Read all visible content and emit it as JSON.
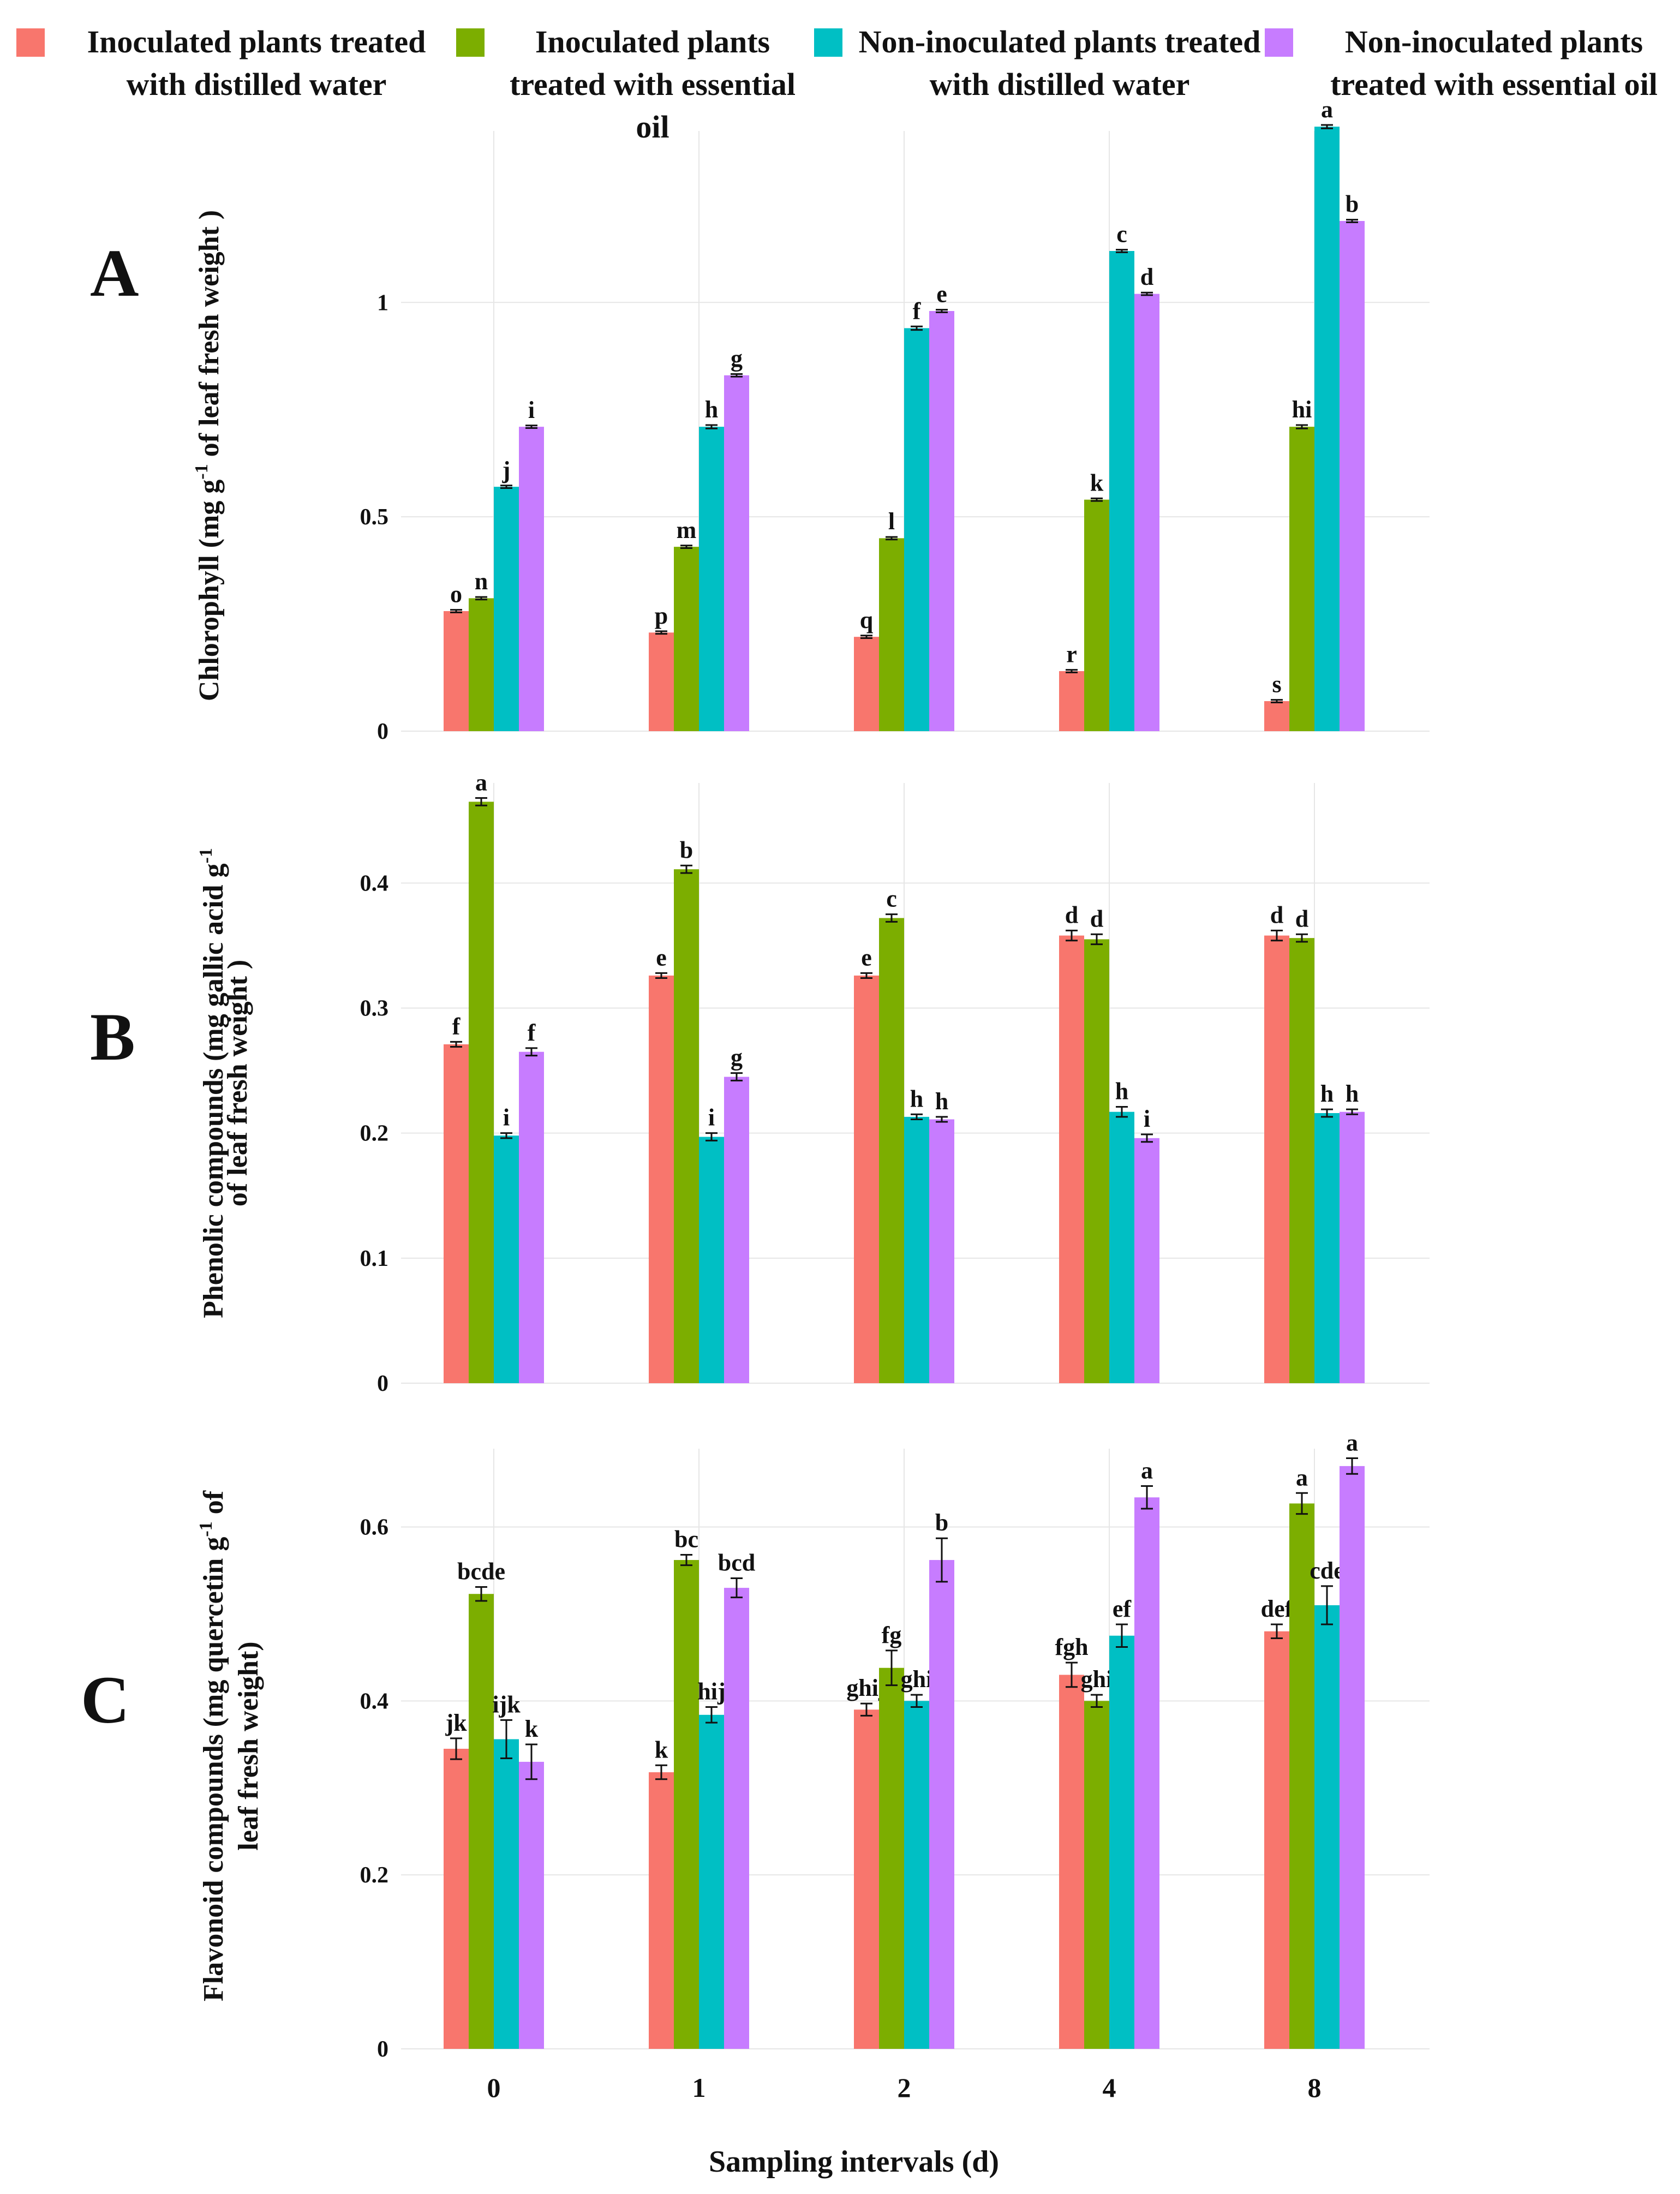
{
  "legend": [
    {
      "label": "Inoculated plants treated with distilled water",
      "color": "#F8766D"
    },
    {
      "label": "Inoculated plants treated with essential oil",
      "color": "#7CAE00"
    },
    {
      "label": "Non-inoculated plants treated with distilled water",
      "color": "#00BFC4"
    },
    {
      "label": "Non-inoculated plants treated with essential oil",
      "color": "#C77CFF"
    }
  ],
  "panels": {
    "a": "A",
    "b": "B",
    "c": "C"
  },
  "xlabel": "Sampling intervals (d)",
  "chart_data": [
    {
      "type": "bar",
      "panel": "A",
      "ylabel_parts": [
        "Chlorophyll (mg g",
        "-1",
        " of leaf fresh weight )"
      ],
      "categories": [
        "0",
        "1",
        "2",
        "4",
        "8"
      ],
      "ylim": [
        0,
        1.4
      ],
      "yticks": [
        0,
        0.5,
        1
      ],
      "ytick_labels": [
        "0",
        "0.5",
        "1"
      ],
      "grid": true,
      "series": [
        {
          "name": "Inoculated plants treated with distilled water",
          "values": [
            0.28,
            0.23,
            0.22,
            0.14,
            0.07
          ],
          "errors": [
            0.003,
            0.003,
            0.003,
            0.003,
            0.003
          ],
          "letters": [
            "o",
            "p",
            "q",
            "r",
            "s"
          ]
        },
        {
          "name": "Inoculated plants treated with essential oil",
          "values": [
            0.31,
            0.43,
            0.45,
            0.54,
            0.71
          ],
          "errors": [
            0.003,
            0.003,
            0.003,
            0.003,
            0.004
          ],
          "letters": [
            "n",
            "m",
            "l",
            "k",
            "hi"
          ]
        },
        {
          "name": "Non-inoculated plants treated with distilled water",
          "values": [
            0.57,
            0.71,
            0.94,
            1.12,
            1.41
          ],
          "errors": [
            0.003,
            0.004,
            0.004,
            0.003,
            0.004
          ],
          "letters": [
            "j",
            "h",
            "f",
            "c",
            "a"
          ]
        },
        {
          "name": "Non-inoculated plants treated with essential oil",
          "values": [
            0.71,
            0.83,
            0.98,
            1.02,
            1.19
          ],
          "errors": [
            0.003,
            0.003,
            0.003,
            0.003,
            0.003
          ],
          "letters": [
            "i",
            "g",
            "e",
            "d",
            "b"
          ]
        }
      ]
    },
    {
      "type": "bar",
      "panel": "B",
      "ylabel_parts": [
        "Phenolic compounds (mg gallic acid g",
        "-1",
        "|of leaf fresh weight )"
      ],
      "categories": [
        "0",
        "1",
        "2",
        "4",
        "8"
      ],
      "ylim": [
        0,
        0.48
      ],
      "yticks": [
        0,
        0.1,
        0.2,
        0.3,
        0.4
      ],
      "ytick_labels": [
        "0",
        "0.1",
        "0.2",
        "0.3",
        "0.4"
      ],
      "grid": true,
      "series": [
        {
          "name": "Inoculated plants treated with distilled water",
          "values": [
            0.271,
            0.326,
            0.326,
            0.358,
            0.358
          ],
          "errors": [
            0.002,
            0.002,
            0.002,
            0.004,
            0.004
          ],
          "letters": [
            "f",
            "e",
            "e",
            "d",
            "d"
          ]
        },
        {
          "name": "Inoculated plants treated with essential oil",
          "values": [
            0.465,
            0.411,
            0.372,
            0.355,
            0.356
          ],
          "errors": [
            0.003,
            0.003,
            0.003,
            0.004,
            0.003
          ],
          "letters": [
            "a",
            "b",
            "c",
            "d",
            "d"
          ]
        },
        {
          "name": "Non-inoculated plants treated with distilled water",
          "values": [
            0.198,
            0.197,
            0.213,
            0.217,
            0.216
          ],
          "errors": [
            0.002,
            0.003,
            0.002,
            0.004,
            0.003
          ],
          "letters": [
            "i",
            "i",
            "h",
            "h",
            "h"
          ]
        },
        {
          "name": "Non-inoculated plants treated with essential oil",
          "values": [
            0.265,
            0.245,
            0.211,
            0.196,
            0.217
          ],
          "errors": [
            0.003,
            0.003,
            0.002,
            0.003,
            0.002
          ],
          "letters": [
            "f",
            "g",
            "h",
            "i",
            "h"
          ]
        }
      ]
    },
    {
      "type": "bar",
      "panel": "C",
      "ylabel_parts": [
        "Flavonoid compounds (mg quercetin g",
        "-1",
        " of|leaf fresh weight)"
      ],
      "categories": [
        "0",
        "1",
        "2",
        "4",
        "8"
      ],
      "ylim": [
        0,
        0.69
      ],
      "yticks": [
        0,
        0.2,
        0.4,
        0.6
      ],
      "ytick_labels": [
        "0",
        "0.2",
        "0.4",
        "0.6"
      ],
      "grid": true,
      "series": [
        {
          "name": "Inoculated plants treated with distilled water",
          "values": [
            0.345,
            0.318,
            0.39,
            0.43,
            0.48
          ],
          "errors": [
            0.012,
            0.008,
            0.007,
            0.014,
            0.008
          ],
          "letters": [
            "jk",
            "k",
            "ghij",
            "fgh",
            "def"
          ]
        },
        {
          "name": "Inoculated plants treated with essential oil",
          "values": [
            0.523,
            0.562,
            0.438,
            0.4,
            0.627
          ],
          "errors": [
            0.008,
            0.006,
            0.02,
            0.007,
            0.012
          ],
          "letters": [
            "bcde",
            "bc",
            "fg",
            "ghi",
            "a"
          ]
        },
        {
          "name": "Non-inoculated plants treated with distilled water",
          "values": [
            0.356,
            0.384,
            0.4,
            0.475,
            0.51
          ],
          "errors": [
            0.022,
            0.009,
            0.007,
            0.013,
            0.022
          ],
          "letters": [
            "ijk",
            "hij",
            "ghi",
            "ef",
            "cde"
          ]
        },
        {
          "name": "Non-inoculated plants treated with essential oil",
          "values": [
            0.33,
            0.53,
            0.562,
            0.634,
            0.67
          ],
          "errors": [
            0.02,
            0.011,
            0.025,
            0.013,
            0.009
          ],
          "letters": [
            "k",
            "bcd",
            "b",
            "a",
            "a"
          ]
        }
      ]
    }
  ]
}
